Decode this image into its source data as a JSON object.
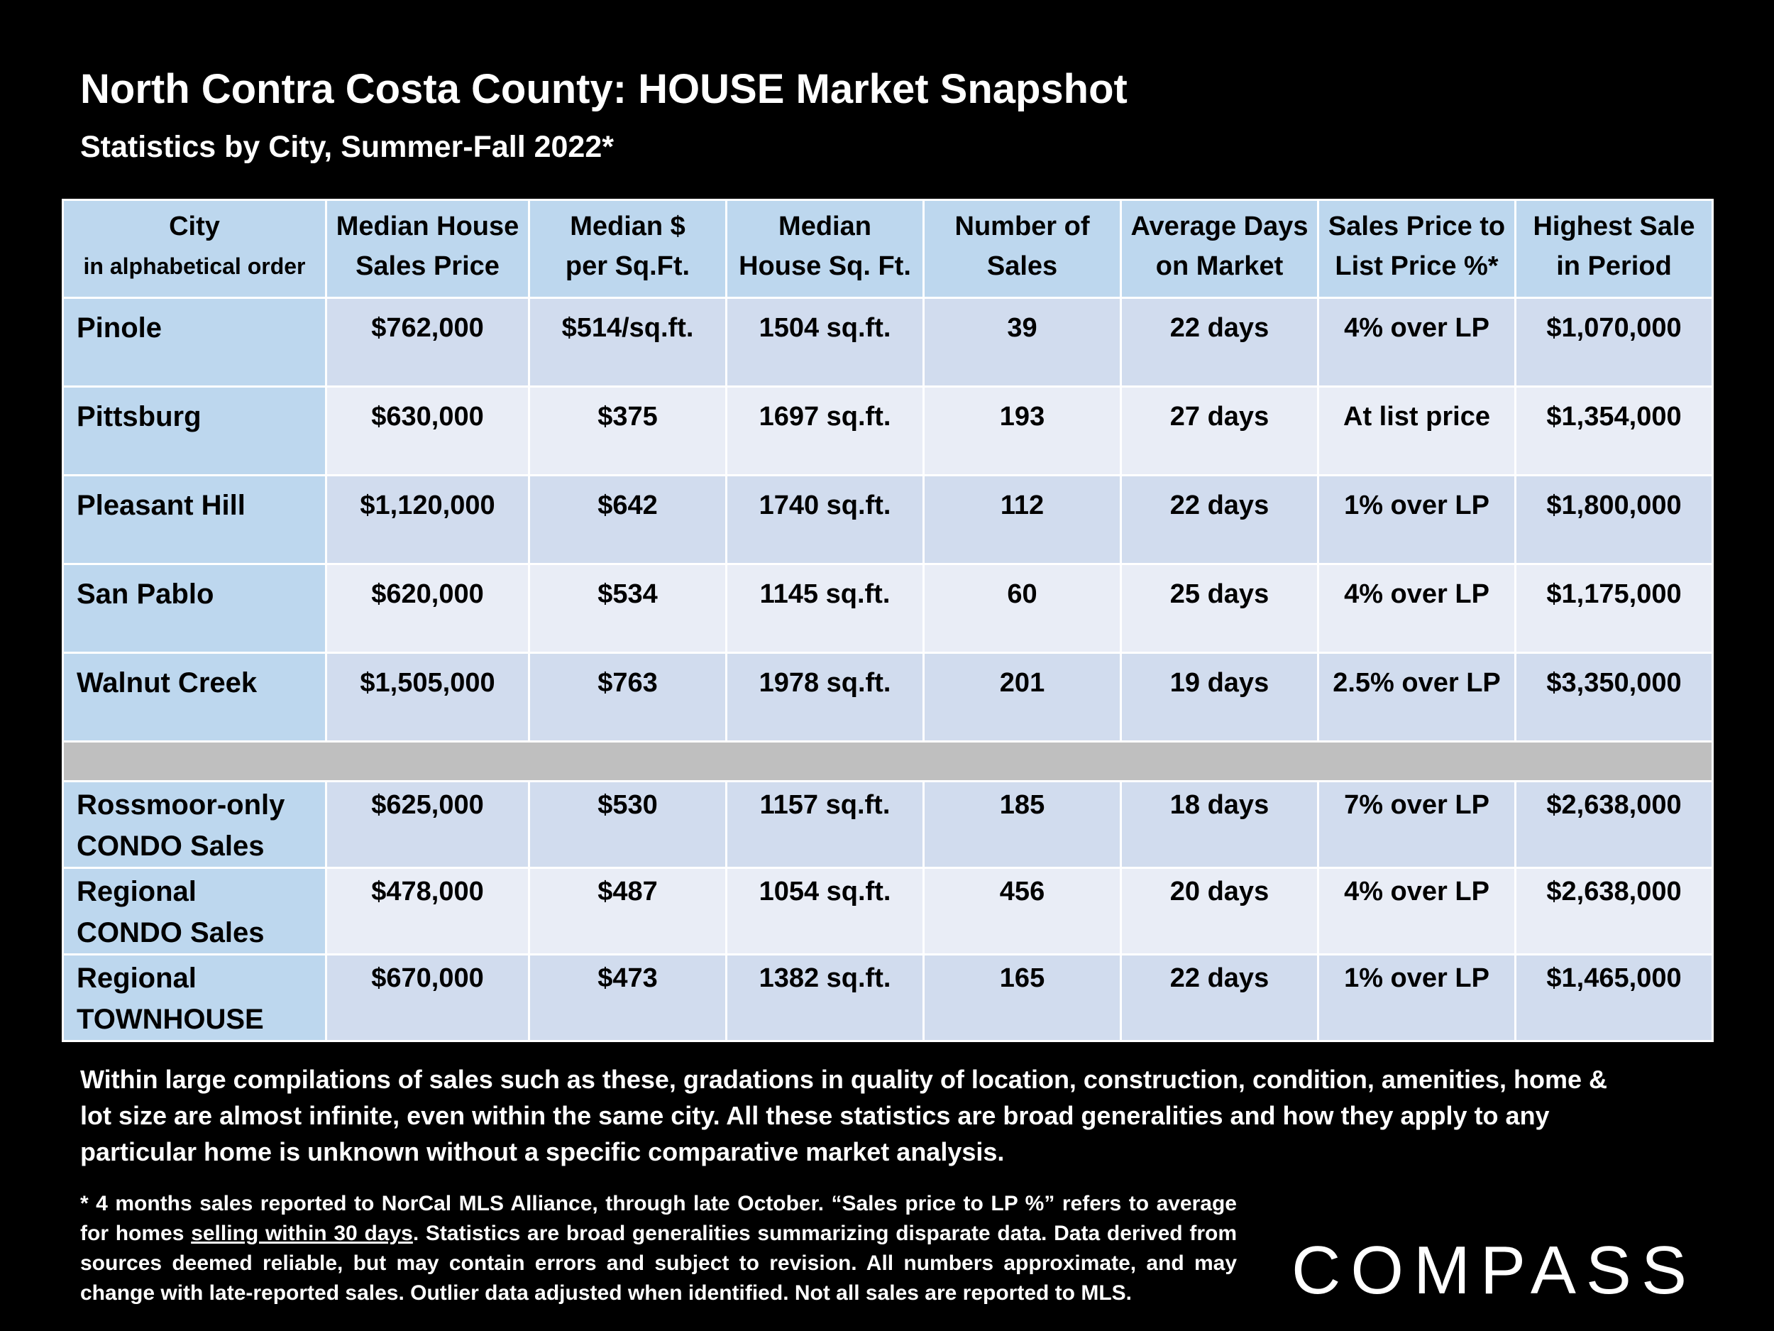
{
  "title": "North Contra Costa County: HOUSE Market Snapshot",
  "subtitle": "Statistics by City, Summer-Fall 2022*",
  "table": {
    "headers": [
      {
        "line1": "City",
        "line2": "in alphabetical order"
      },
      {
        "line1": "Median House",
        "line2": "Sales Price"
      },
      {
        "line1": "Median $",
        "line2": "per Sq.Ft."
      },
      {
        "line1": "Median",
        "line2": "House Sq. Ft."
      },
      {
        "line1": "Number of",
        "line2": "Sales"
      },
      {
        "line1": "Average Days",
        "line2": "on Market"
      },
      {
        "line1": "Sales Price to",
        "line2": "List Price %*"
      },
      {
        "line1": "Highest Sale",
        "line2": "in Period"
      }
    ],
    "city_rows": [
      {
        "city": "Pinole",
        "median_price": "$762,000",
        "per_sqft": "$514/sq.ft.",
        "sqft": "1504 sq.ft.",
        "sales": "39",
        "days": "22 days",
        "sp_lp": "4% over LP",
        "highest": "$1,070,000"
      },
      {
        "city": "Pittsburg",
        "median_price": "$630,000",
        "per_sqft": "$375",
        "sqft": "1697 sq.ft.",
        "sales": "193",
        "days": "27 days",
        "sp_lp": "At list price",
        "highest": "$1,354,000"
      },
      {
        "city": "Pleasant Hill",
        "median_price": "$1,120,000",
        "per_sqft": "$642",
        "sqft": "1740 sq.ft.",
        "sales": "112",
        "days": "22 days",
        "sp_lp": "1% over LP",
        "highest": "$1,800,000"
      },
      {
        "city": "San Pablo",
        "median_price": "$620,000",
        "per_sqft": "$534",
        "sqft": "1145 sq.ft.",
        "sales": "60",
        "days": "25 days",
        "sp_lp": "4% over LP",
        "highest": "$1,175,000"
      },
      {
        "city": "Walnut Creek",
        "median_price": "$1,505,000",
        "per_sqft": "$763",
        "sqft": "1978 sq.ft.",
        "sales": "201",
        "days": "19 days",
        "sp_lp": "2.5% over LP",
        "highest": "$3,350,000"
      }
    ],
    "other_rows": [
      {
        "city_line1": "Rossmoor-only",
        "city_line2": "CONDO Sales",
        "median_price": "$625,000",
        "per_sqft": "$530",
        "sqft": "1157 sq.ft.",
        "sales": "185",
        "days": "18 days",
        "sp_lp": "7% over LP",
        "highest": "$2,638,000"
      },
      {
        "city_line1": "Regional",
        "city_line2": "CONDO Sales",
        "median_price": "$478,000",
        "per_sqft": "$487",
        "sqft": "1054 sq.ft.",
        "sales": "456",
        "days": "20 days",
        "sp_lp": "4% over LP",
        "highest": "$2,638,000"
      },
      {
        "city_line1": "Regional",
        "city_line2": "TOWNHOUSE",
        "median_price": "$670,000",
        "per_sqft": "$473",
        "sqft": "1382 sq.ft.",
        "sales": "165",
        "days": "22 days",
        "sp_lp": "1% over LP",
        "highest": "$1,465,000"
      }
    ]
  },
  "note": "Within large compilations of sales such as these, gradations in quality of location, construction, condition, amenities, home & lot size are almost infinite, even within the same city. All these statistics are broad generalities and how they apply to any particular home is unknown without a specific comparative market analysis.",
  "footnote": {
    "part1": "* 4 months sales reported to NorCal MLS Alliance, through late October. “Sales price to LP %” refers to average for homes ",
    "underlined": "selling within 30 days",
    "part2": ". Statistics are broad generalities summarizing disparate data. Data derived from sources deemed reliable, but may contain errors and subject to revision. All numbers approximate, and may change with late-reported sales. Outlier data adjusted when identified. Not all sales are reported to MLS."
  },
  "logo": "COMPASS"
}
